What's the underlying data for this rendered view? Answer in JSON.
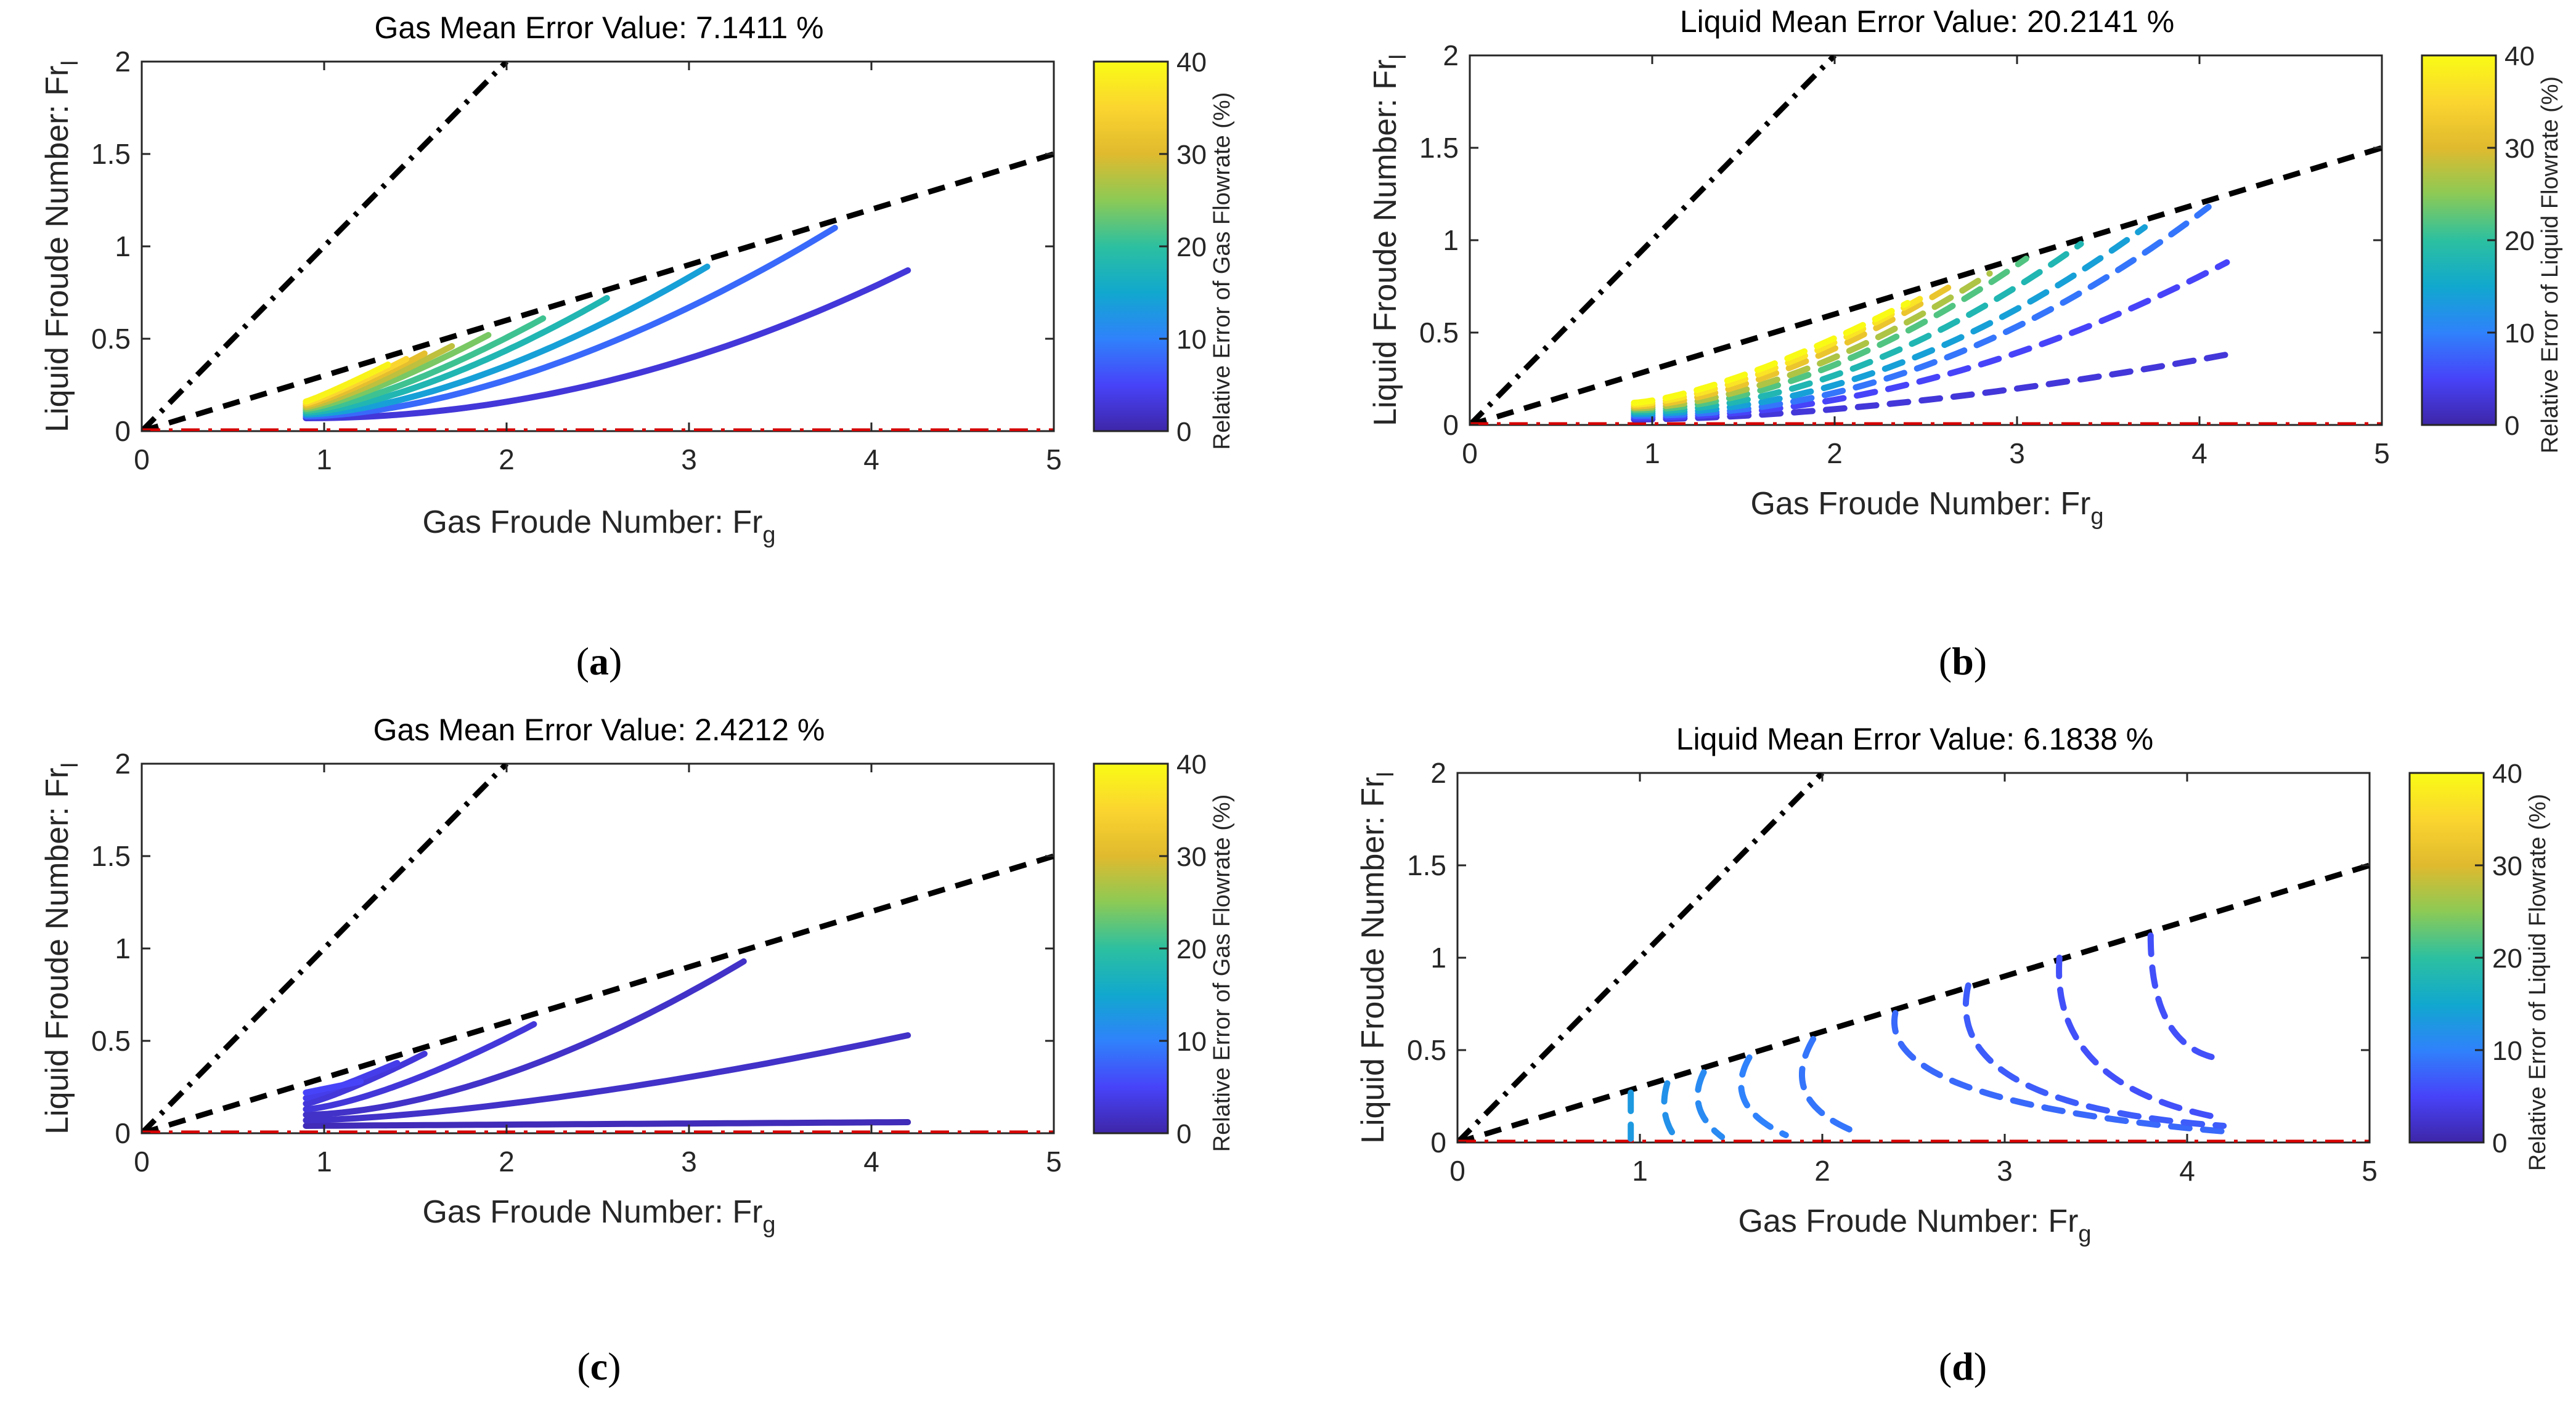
{
  "figure": {
    "colormap": [
      "#3e26a8",
      "#4743f9",
      "#2f82fb",
      "#11a8ce",
      "#2cc0a0",
      "#8cca55",
      "#e0ba2e",
      "#fbd52f",
      "#f9fb15"
    ],
    "colors": {
      "diag_steep": "#000000",
      "diag_shallow": "#000000",
      "zero_line": "#d60000",
      "axis": "#262626"
    }
  },
  "chart_data": [
    {
      "id": "a",
      "panel_label": "a",
      "type": "line",
      "title": "Gas Mean Error Value: 7.1411 %",
      "xlabel": "Gas Froude Number: Fr",
      "xlabel_sub": "g",
      "ylabel": "Liquid Froude Number: Fr",
      "ylabel_sub": "l",
      "xlim": [
        0,
        5
      ],
      "ylim": [
        0,
        2
      ],
      "xticks": [
        "0",
        "1",
        "2",
        "3",
        "4",
        "5"
      ],
      "yticks": [
        "0",
        "0.5",
        "1",
        "1.5",
        "2"
      ],
      "colorbar": {
        "label": "Relative Error of Gas Flowrate (%)",
        "ticks": [
          "0",
          "10",
          "20",
          "30",
          "40"
        ],
        "range": [
          0,
          40
        ]
      },
      "reference_lines": [
        {
          "name": "steep",
          "style": "dashdot",
          "points": [
            [
              0,
              0
            ],
            [
              2,
              2
            ]
          ]
        },
        {
          "name": "shallow",
          "style": "dashed",
          "points": [
            [
              0,
              0
            ],
            [
              5,
              1.5
            ]
          ]
        },
        {
          "name": "zero",
          "style": "dashdot",
          "points": [
            [
              0,
              0
            ],
            [
              5,
              0
            ]
          ]
        }
      ],
      "series_style": "solid",
      "series": [
        {
          "name": "L1",
          "x0": 0.9,
          "y0": 0.07,
          "x1": 4.2,
          "y1": 0.87,
          "p": 2.0,
          "err": 3
        },
        {
          "name": "L2",
          "x0": 0.9,
          "y0": 0.08,
          "x1": 3.8,
          "y1": 1.1,
          "p": 1.7,
          "err": 8
        },
        {
          "name": "L3",
          "x0": 0.9,
          "y0": 0.09,
          "x1": 3.1,
          "y1": 0.89,
          "p": 1.6,
          "err": 14
        },
        {
          "name": "L4",
          "x0": 0.9,
          "y0": 0.1,
          "x1": 2.55,
          "y1": 0.72,
          "p": 1.5,
          "err": 18
        },
        {
          "name": "L5",
          "x0": 0.9,
          "y0": 0.11,
          "x1": 2.2,
          "y1": 0.61,
          "p": 1.4,
          "err": 21
        },
        {
          "name": "L6",
          "x0": 0.9,
          "y0": 0.12,
          "x1": 1.9,
          "y1": 0.52,
          "p": 1.3,
          "err": 24
        },
        {
          "name": "L7",
          "x0": 0.9,
          "y0": 0.13,
          "x1": 1.7,
          "y1": 0.46,
          "p": 1.25,
          "err": 28
        },
        {
          "name": "L8",
          "x0": 0.9,
          "y0": 0.14,
          "x1": 1.55,
          "y1": 0.42,
          "p": 1.2,
          "err": 31
        },
        {
          "name": "L9",
          "x0": 0.9,
          "y0": 0.15,
          "x1": 1.45,
          "y1": 0.39,
          "p": 1.15,
          "err": 35
        },
        {
          "name": "L10",
          "x0": 0.9,
          "y0": 0.16,
          "x1": 1.35,
          "y1": 0.36,
          "p": 1.1,
          "err": 39
        }
      ]
    },
    {
      "id": "b",
      "panel_label": "b",
      "type": "line",
      "title": "Liquid Mean Error Value: 20.2141 %",
      "xlabel": "Gas Froude Number: Fr",
      "xlabel_sub": "g",
      "ylabel": "Liquid Froude Number: Fr",
      "ylabel_sub": "l",
      "xlim": [
        0,
        5
      ],
      "ylim": [
        0,
        2
      ],
      "xticks": [
        "0",
        "1",
        "2",
        "3",
        "4",
        "5"
      ],
      "yticks": [
        "0",
        "0.5",
        "1",
        "1.5",
        "2"
      ],
      "colorbar": {
        "label": "Relative Error of Liquid Flowrate (%)",
        "ticks": [
          "0",
          "10",
          "20",
          "30",
          "40"
        ],
        "range": [
          0,
          40
        ]
      },
      "reference_lines": [
        {
          "name": "steep",
          "style": "dashdot",
          "points": [
            [
              0,
              0
            ],
            [
              2,
              2
            ]
          ]
        },
        {
          "name": "shallow",
          "style": "dashed",
          "points": [
            [
              0,
              0
            ],
            [
              5,
              1.5
            ]
          ]
        },
        {
          "name": "zero",
          "style": "dashdot",
          "points": [
            [
              0,
              0
            ],
            [
              5,
              0
            ]
          ]
        }
      ],
      "series_style": "dashed",
      "series": [
        {
          "name": "L1",
          "x0": 0.9,
          "y0": 0.03,
          "x1": 4.2,
          "y1": 0.39,
          "p": 1.7,
          "err": 3
        },
        {
          "name": "L2",
          "x0": 0.9,
          "y0": 0.04,
          "x1": 4.15,
          "y1": 0.88,
          "p": 2.0,
          "err": 5
        },
        {
          "name": "L3",
          "x0": 0.9,
          "y0": 0.05,
          "x1": 4.05,
          "y1": 1.18,
          "p": 2.1,
          "err": 9
        },
        {
          "name": "L4",
          "x0": 0.9,
          "y0": 0.06,
          "x1": 3.7,
          "y1": 1.07,
          "p": 2.0,
          "err": 14
        },
        {
          "name": "L5",
          "x0": 0.9,
          "y0": 0.07,
          "x1": 3.35,
          "y1": 0.98,
          "p": 1.9,
          "err": 18
        },
        {
          "name": "L6",
          "x0": 0.9,
          "y0": 0.08,
          "x1": 3.05,
          "y1": 0.9,
          "p": 1.8,
          "err": 22
        },
        {
          "name": "L7",
          "x0": 0.9,
          "y0": 0.09,
          "x1": 2.85,
          "y1": 0.82,
          "p": 1.7,
          "err": 27
        },
        {
          "name": "L8",
          "x0": 0.9,
          "y0": 0.1,
          "x1": 2.65,
          "y1": 0.76,
          "p": 1.6,
          "err": 32
        },
        {
          "name": "L9",
          "x0": 0.9,
          "y0": 0.11,
          "x1": 2.5,
          "y1": 0.7,
          "p": 1.5,
          "err": 37
        },
        {
          "name": "L10",
          "x0": 0.9,
          "y0": 0.12,
          "x1": 2.4,
          "y1": 0.66,
          "p": 1.4,
          "err": 40
        }
      ]
    },
    {
      "id": "c",
      "panel_label": "c",
      "type": "line",
      "title": "Gas Mean Error Value: 2.4212 %",
      "xlabel": "Gas Froude Number: Fr",
      "xlabel_sub": "g",
      "ylabel": "Liquid Froude Number: Fr",
      "ylabel_sub": "l",
      "xlim": [
        0,
        5
      ],
      "ylim": [
        0,
        2
      ],
      "xticks": [
        "0",
        "1",
        "2",
        "3",
        "4",
        "5"
      ],
      "yticks": [
        "0",
        "0.5",
        "1",
        "1.5",
        "2"
      ],
      "colorbar": {
        "label": "Relative Error of Gas Flowrate (%)",
        "ticks": [
          "0",
          "10",
          "20",
          "30",
          "40"
        ],
        "range": [
          0,
          40
        ]
      },
      "reference_lines": [
        {
          "name": "steep",
          "style": "dashdot",
          "points": [
            [
              0,
              0
            ],
            [
              2,
              2
            ]
          ]
        },
        {
          "name": "shallow",
          "style": "dashed",
          "points": [
            [
              0,
              0
            ],
            [
              5,
              1.5
            ]
          ]
        },
        {
          "name": "zero",
          "style": "dashdot",
          "points": [
            [
              0,
              0
            ],
            [
              5,
              0
            ]
          ]
        }
      ],
      "series_style": "solid",
      "series": [
        {
          "name": "L1",
          "x0": 0.9,
          "y0": 0.04,
          "x1": 4.2,
          "y1": 0.06,
          "p": 1.0,
          "err": 1
        },
        {
          "name": "L2",
          "x0": 0.9,
          "y0": 0.07,
          "x1": 4.2,
          "y1": 0.53,
          "p": 1.5,
          "err": 2
        },
        {
          "name": "L3",
          "x0": 0.9,
          "y0": 0.1,
          "x1": 3.3,
          "y1": 0.93,
          "p": 1.7,
          "err": 2
        },
        {
          "name": "L4",
          "x0": 0.9,
          "y0": 0.13,
          "x1": 2.15,
          "y1": 0.59,
          "p": 1.4,
          "err": 3
        },
        {
          "name": "L5",
          "x0": 0.9,
          "y0": 0.16,
          "x1": 1.55,
          "y1": 0.43,
          "p": 1.2,
          "err": 3
        },
        {
          "name": "L6",
          "x0": 0.9,
          "y0": 0.19,
          "x1": 1.4,
          "y1": 0.38,
          "p": 1.1,
          "err": 4
        },
        {
          "name": "L7",
          "x0": 0.9,
          "y0": 0.22,
          "x1": 1.2,
          "y1": 0.28,
          "p": 1.0,
          "err": 5
        }
      ]
    },
    {
      "id": "d",
      "panel_label": "d",
      "type": "line",
      "title": "Liquid Mean Error Value: 6.1838 %",
      "xlabel": "Gas Froude Number: Fr",
      "xlabel_sub": "g",
      "ylabel": "Liquid Froude Number: Fr",
      "ylabel_sub": "l",
      "xlim": [
        0,
        5
      ],
      "ylim": [
        0,
        2
      ],
      "xticks": [
        "0",
        "1",
        "2",
        "3",
        "4",
        "5"
      ],
      "yticks": [
        "0",
        "0.5",
        "1",
        "1.5",
        "2"
      ],
      "colorbar": {
        "label": "Relative Error of Liquid Flowrate (%)",
        "ticks": [
          "0",
          "10",
          "20",
          "30",
          "40"
        ],
        "range": [
          0,
          40
        ]
      },
      "reference_lines": [
        {
          "name": "steep",
          "style": "dashdot",
          "points": [
            [
              0,
              0
            ],
            [
              2,
              2
            ]
          ]
        },
        {
          "name": "shallow",
          "style": "dashed",
          "points": [
            [
              0,
              0
            ],
            [
              5,
              1.5
            ]
          ]
        },
        {
          "name": "zero",
          "style": "dashdot",
          "points": [
            [
              0,
              0
            ],
            [
              5,
              0
            ]
          ]
        }
      ],
      "series_style": "dashed",
      "series_kind": "bent",
      "series": [
        {
          "name": "V1",
          "top": [
            0.95,
            0.27
          ],
          "mid": [
            0.95,
            0.12
          ],
          "end": [
            0.95,
            0.02
          ],
          "err": 13
        },
        {
          "name": "V2",
          "top": [
            1.15,
            0.32
          ],
          "mid": [
            1.1,
            0.15
          ],
          "end": [
            1.2,
            0.02
          ],
          "err": 12
        },
        {
          "name": "V3",
          "top": [
            1.35,
            0.38
          ],
          "mid": [
            1.25,
            0.18
          ],
          "end": [
            1.45,
            0.03
          ],
          "err": 11
        },
        {
          "name": "V4",
          "top": [
            1.6,
            0.46
          ],
          "mid": [
            1.45,
            0.2
          ],
          "end": [
            1.8,
            0.04
          ],
          "err": 10
        },
        {
          "name": "V5",
          "top": [
            1.95,
            0.56
          ],
          "mid": [
            1.75,
            0.22
          ],
          "end": [
            2.2,
            0.05
          ],
          "err": 9
        },
        {
          "name": "V6",
          "top": [
            2.4,
            0.7
          ],
          "mid": [
            2.3,
            0.22
          ],
          "end": [
            4.2,
            0.06
          ],
          "err": 8
        },
        {
          "name": "V7",
          "top": [
            2.8,
            0.85
          ],
          "mid": [
            2.65,
            0.2
          ],
          "end": [
            4.2,
            0.09
          ],
          "err": 7
        },
        {
          "name": "V8",
          "top": [
            3.3,
            1.0
          ],
          "mid": [
            3.25,
            0.3
          ],
          "end": [
            4.2,
            0.13
          ],
          "err": 6
        },
        {
          "name": "V9",
          "top": [
            3.8,
            1.12
          ],
          "mid": [
            3.8,
            0.5
          ],
          "end": [
            4.2,
            0.45
          ],
          "err": 6
        }
      ]
    }
  ]
}
